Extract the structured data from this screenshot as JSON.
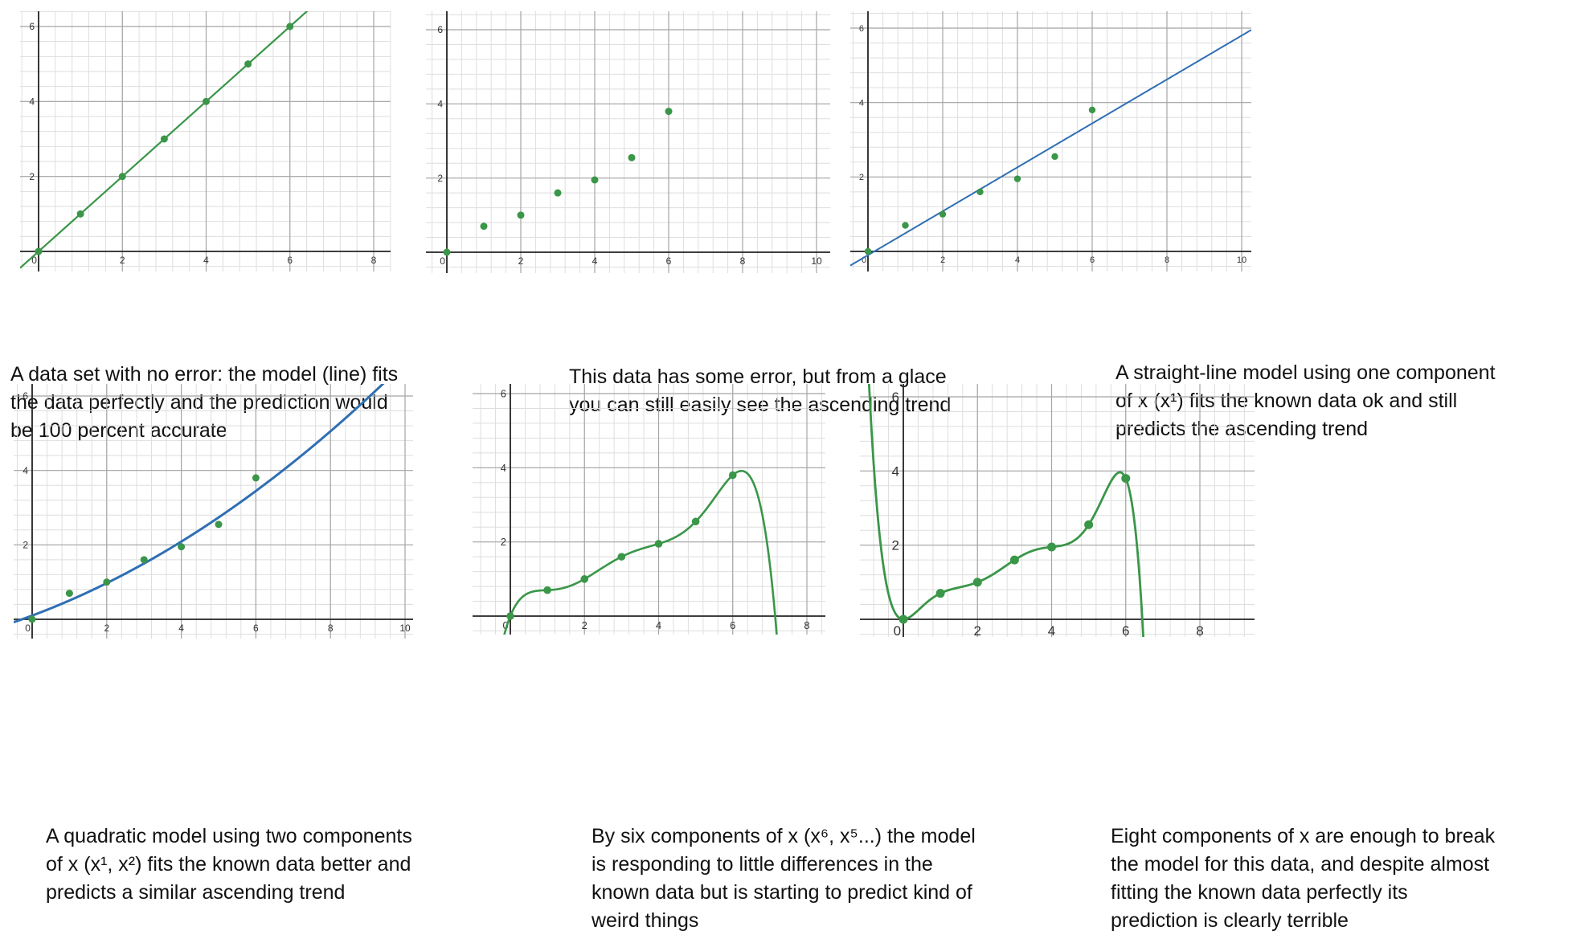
{
  "colors": {
    "green": "#3a9648",
    "blue": "#2f6fb3",
    "grid_major": "#a5a5a5",
    "grid_minor": "#dedede",
    "axis": "#222222",
    "tick_text": "#333333"
  },
  "panels": [
    {
      "caption_lines": [
        "A data set with no error: the model (line) fits",
        "the data perfectly and the prediction would",
        "be 100 percent accurate"
      ],
      "chart_data": {
        "type": "scatter",
        "title": "",
        "xlabel": "",
        "ylabel": "",
        "xlim": [
          0,
          9
        ],
        "ylim": [
          -0.5,
          6.4
        ],
        "x_ticks": [
          0,
          2,
          4,
          6,
          8
        ],
        "y_ticks": [
          2,
          4,
          6
        ],
        "origin_label": "0",
        "grid": true,
        "points": [
          [
            0,
            0
          ],
          [
            1,
            1
          ],
          [
            2,
            2
          ],
          [
            3,
            3
          ],
          [
            4,
            4
          ],
          [
            5,
            5
          ],
          [
            6,
            6
          ]
        ],
        "model": {
          "kind": "polynomial",
          "coefficients": [
            0,
            1
          ],
          "line_color": "#3a9648",
          "description": "y = x"
        }
      }
    },
    {
      "caption_lines": [
        "This data has some error, but from a glace",
        "you can still easily see the ascending trend"
      ],
      "chart_data": {
        "type": "scatter",
        "title": "",
        "xlabel": "",
        "ylabel": "",
        "xlim": [
          0,
          10.3
        ],
        "ylim": [
          -0.6,
          6.2
        ],
        "x_ticks": [
          0,
          2,
          4,
          6,
          8,
          10
        ],
        "y_ticks": [
          2,
          4,
          6
        ],
        "origin_label": "0",
        "grid": true,
        "points": [
          [
            0,
            0
          ],
          [
            1,
            0.7
          ],
          [
            2,
            1.0
          ],
          [
            3,
            1.6
          ],
          [
            4,
            1.95
          ],
          [
            5,
            2.55
          ],
          [
            6,
            3.8
          ]
        ],
        "model": null
      }
    },
    {
      "caption_lines": [
        "A straight-line model using one component",
        "of x (x¹) fits the known data ok and still",
        "predicts the ascending trend"
      ],
      "chart_data": {
        "type": "scatter",
        "title": "",
        "xlabel": "",
        "ylabel": "",
        "xlim": [
          0,
          10.3
        ],
        "ylim": [
          -0.5,
          6.2
        ],
        "x_ticks": [
          0,
          2,
          4,
          6,
          8,
          10
        ],
        "y_ticks": [
          2,
          4,
          6
        ],
        "origin_label": "0",
        "grid": true,
        "points": [
          [
            0,
            0
          ],
          [
            1,
            0.7
          ],
          [
            2,
            1.0
          ],
          [
            3,
            1.6
          ],
          [
            4,
            1.95
          ],
          [
            5,
            2.55
          ],
          [
            6,
            3.8
          ]
        ],
        "model": {
          "kind": "polynomial",
          "coefficients": [
            -0.1,
            0.59
          ],
          "line_color": "#2f6fb3",
          "description": "linear fit"
        }
      }
    },
    {
      "caption_lines": [
        "A quadratic model using two components",
        "of x (x¹, x²) fits the known data better and",
        "predicts a similar ascending trend"
      ],
      "chart_data": {
        "type": "scatter",
        "title": "",
        "xlabel": "",
        "ylabel": "",
        "xlim": [
          0,
          10.3
        ],
        "ylim": [
          -0.5,
          6.2
        ],
        "x_ticks": [
          0,
          2,
          4,
          6,
          8,
          10
        ],
        "y_ticks": [
          2,
          4,
          6
        ],
        "origin_label": "0",
        "grid": true,
        "points": [
          [
            0,
            0
          ],
          [
            1,
            0.7
          ],
          [
            2,
            1.0
          ],
          [
            3,
            1.6
          ],
          [
            4,
            1.95
          ],
          [
            5,
            2.55
          ],
          [
            6,
            3.8
          ]
        ],
        "model": {
          "kind": "polynomial",
          "coefficients": [
            0.1,
            0.375,
            0.0305
          ],
          "line_color": "#2f6fb3",
          "description": "quadratic fit"
        }
      }
    },
    {
      "caption_lines": [
        "By six components of x (x⁶, x⁵...)  the model",
        "is responding to little differences in the",
        "known data but is starting to predict kind of",
        "weird things"
      ],
      "chart_data": {
        "type": "scatter",
        "title": "",
        "xlabel": "",
        "ylabel": "",
        "xlim": [
          0,
          8.7
        ],
        "ylim": [
          -0.5,
          6.4
        ],
        "x_ticks": [
          0,
          2,
          4,
          6,
          8
        ],
        "y_ticks": [
          2,
          4,
          6
        ],
        "origin_label": "0",
        "grid": true,
        "points": [
          [
            0,
            0
          ],
          [
            1,
            0.7
          ],
          [
            2,
            1.0
          ],
          [
            3,
            1.6
          ],
          [
            4,
            1.95
          ],
          [
            5,
            2.55
          ],
          [
            6,
            3.8
          ]
        ],
        "model": {
          "kind": "interpolating_polynomial",
          "degree": 6,
          "line_color": "#3a9648",
          "description": "degree-6 polynomial through all points"
        }
      }
    },
    {
      "caption_lines": [
        "Eight components of x are enough to break",
        "the model for this data, and despite almost",
        "fitting the known data perfectly its",
        "prediction is clearly terrible"
      ],
      "chart_data": {
        "type": "scatter",
        "title": "",
        "xlabel": "",
        "ylabel": "",
        "xlim": [
          0,
          9.2
        ],
        "ylim": [
          -0.5,
          6.2
        ],
        "x_ticks": [
          0,
          2,
          4,
          6,
          8
        ],
        "y_ticks": [
          2,
          4,
          6
        ],
        "origin_label": "0",
        "grid": true,
        "points": [
          [
            0,
            0
          ],
          [
            1,
            0.7
          ],
          [
            2,
            1.0
          ],
          [
            3,
            1.6
          ],
          [
            4,
            1.95
          ],
          [
            5,
            2.55
          ],
          [
            6,
            3.8
          ]
        ],
        "model": {
          "kind": "interpolating_polynomial",
          "degree": 8,
          "extra_points": [
            [
              6.5,
              -1.0
            ],
            [
              -1.0,
              8.0
            ]
          ],
          "line_color": "#3a9648",
          "description": "degree-8 polynomial"
        }
      }
    }
  ]
}
